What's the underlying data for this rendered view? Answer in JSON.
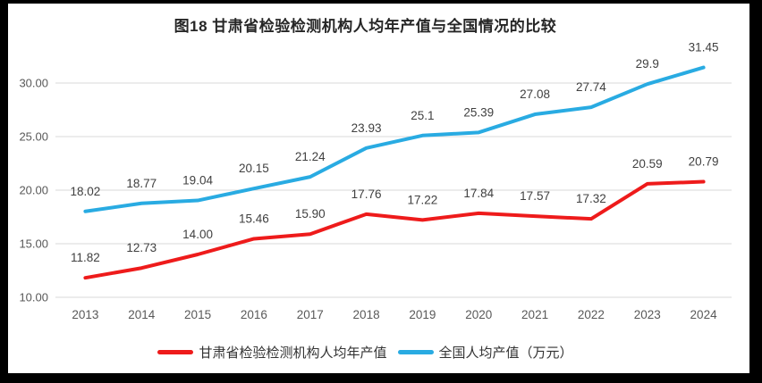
{
  "page": {
    "frame_color": "#000000",
    "canvas_color": "#ffffff"
  },
  "styles": {
    "grid_color": "#d9d9d9",
    "tick_color": "#595959",
    "data_label_color": "#404040",
    "title_color": "#262626",
    "legend_text_color": "#333333"
  },
  "chart_data": {
    "type": "line",
    "title": "图18  甘肃省检验检测机构人均年产值与全国情况的比较",
    "xlabel": "",
    "ylabel": "",
    "grid": true,
    "legend_position": "bottom",
    "ylim": [
      10,
      32
    ],
    "yticks": [
      10,
      15,
      20,
      25,
      30
    ],
    "ytick_labels": [
      "10.00",
      "15.00",
      "20.00",
      "25.00",
      "30.00"
    ],
    "categories": [
      "2013",
      "2014",
      "2015",
      "2016",
      "2017",
      "2018",
      "2019",
      "2020",
      "2021",
      "2022",
      "2023",
      "2024"
    ],
    "series": [
      {
        "id": "gansu",
        "name": "甘肃省检验检测机构人均年产值",
        "color": "#ee1b1b",
        "values": [
          11.82,
          12.73,
          14.0,
          15.46,
          15.9,
          17.76,
          17.22,
          17.84,
          17.57,
          17.32,
          20.59,
          20.79
        ],
        "labels": [
          "11.82",
          "12.73",
          "14.00",
          "15.46",
          "15.90",
          "17.76",
          "17.22",
          "17.84",
          "17.57",
          "17.32",
          "20.59",
          "20.79"
        ]
      },
      {
        "id": "national",
        "name": "全国人均产值（万元）",
        "color": "#29abe2",
        "values": [
          18.02,
          18.77,
          19.04,
          20.15,
          21.24,
          23.93,
          25.1,
          25.39,
          27.08,
          27.74,
          29.9,
          31.45
        ],
        "labels": [
          "18.02",
          "18.77",
          "19.04",
          "20.15",
          "21.24",
          "23.93",
          "25.1",
          "25.39",
          "27.08",
          "27.74",
          "29.9",
          "31.45"
        ]
      }
    ]
  }
}
